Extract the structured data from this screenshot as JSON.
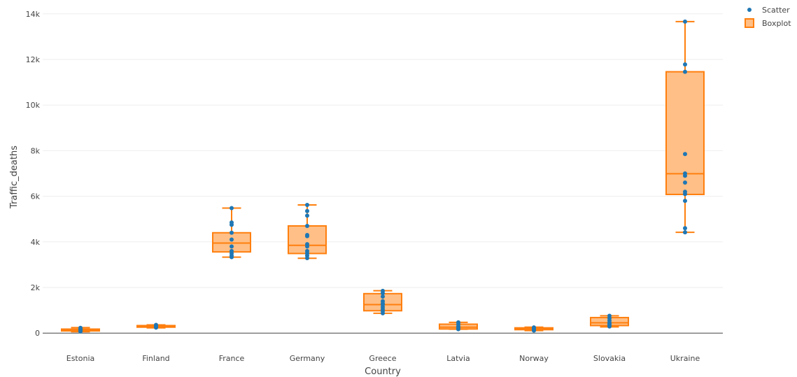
{
  "chart_data": {
    "type": "box",
    "xlabel": "Country",
    "ylabel": "Traffic_deaths",
    "categories": [
      "Estonia",
      "Finland",
      "France",
      "Germany",
      "Greece",
      "Latvia",
      "Norway",
      "Slovakia",
      "Ukraine"
    ],
    "ylim": [
      -300,
      14300
    ],
    "yticks": [
      0,
      2000,
      4000,
      6000,
      8000,
      10000,
      12000,
      14000
    ],
    "ytick_labels": [
      "0",
      "2k",
      "4k",
      "6k",
      "8k",
      "10k",
      "12k",
      "14k"
    ],
    "grid": true,
    "legend": {
      "position": "top-right",
      "entries": [
        {
          "name": "Scatter",
          "kind": "marker",
          "color": "#1f77b4"
        },
        {
          "name": "Boxplot",
          "kind": "box",
          "color": "#ff7f0e"
        }
      ]
    },
    "colors": {
      "box_line": "#ff7f0e",
      "box_fill": "#ffbf86",
      "points": "#1f77b4",
      "grid": "#eeeeee",
      "zeroline": "#444444"
    },
    "boxes": [
      {
        "name": "Estonia",
        "min": 60,
        "q1": 95,
        "median": 130,
        "q3": 175,
        "max": 240
      },
      {
        "name": "Finland",
        "min": 230,
        "q1": 260,
        "median": 290,
        "q3": 330,
        "max": 360
      },
      {
        "name": "France",
        "min": 3330,
        "q1": 3560,
        "median": 3950,
        "q3": 4400,
        "max": 5480
      },
      {
        "name": "Germany",
        "min": 3280,
        "q1": 3490,
        "median": 3850,
        "q3": 4700,
        "max": 5620
      },
      {
        "name": "Greece",
        "min": 870,
        "q1": 980,
        "median": 1250,
        "q3": 1730,
        "max": 1860
      },
      {
        "name": "Latvia",
        "min": 170,
        "q1": 180,
        "median": 260,
        "q3": 390,
        "max": 470
      },
      {
        "name": "Norway",
        "min": 110,
        "q1": 150,
        "median": 180,
        "q3": 230,
        "max": 260
      },
      {
        "name": "Slovakia",
        "min": 270,
        "q1": 330,
        "median": 450,
        "q3": 680,
        "max": 760
      },
      {
        "name": "Ukraine",
        "min": 4420,
        "q1": 6080,
        "median": 6990,
        "q3": 11460,
        "max": 13660
      }
    ],
    "scatter": [
      {
        "name": "Estonia",
        "values": [
          70,
          90,
          110,
          130,
          150,
          180,
          200,
          230
        ]
      },
      {
        "name": "Finland",
        "values": [
          240,
          260,
          280,
          300,
          320,
          340,
          360
        ]
      },
      {
        "name": "France",
        "values": [
          3330,
          3400,
          3500,
          3600,
          3800,
          4100,
          4400,
          4750,
          4850,
          5480
        ]
      },
      {
        "name": "Germany",
        "values": [
          3290,
          3400,
          3500,
          3600,
          3800,
          3900,
          4250,
          4300,
          4700,
          5150,
          5350,
          5620
        ]
      },
      {
        "name": "Greece",
        "values": [
          870,
          970,
          1050,
          1150,
          1250,
          1300,
          1400,
          1600,
          1750,
          1850
        ]
      },
      {
        "name": "Latvia",
        "values": [
          170,
          200,
          260,
          300,
          390,
          470
        ]
      },
      {
        "name": "Norway",
        "values": [
          110,
          140,
          170,
          190,
          220,
          250
        ]
      },
      {
        "name": "Slovakia",
        "values": [
          290,
          340,
          400,
          450,
          550,
          650,
          760
        ]
      },
      {
        "name": "Ukraine",
        "values": [
          4420,
          4600,
          5800,
          6100,
          6200,
          6600,
          6900,
          7000,
          7850,
          11460,
          11780,
          13660
        ]
      }
    ]
  }
}
